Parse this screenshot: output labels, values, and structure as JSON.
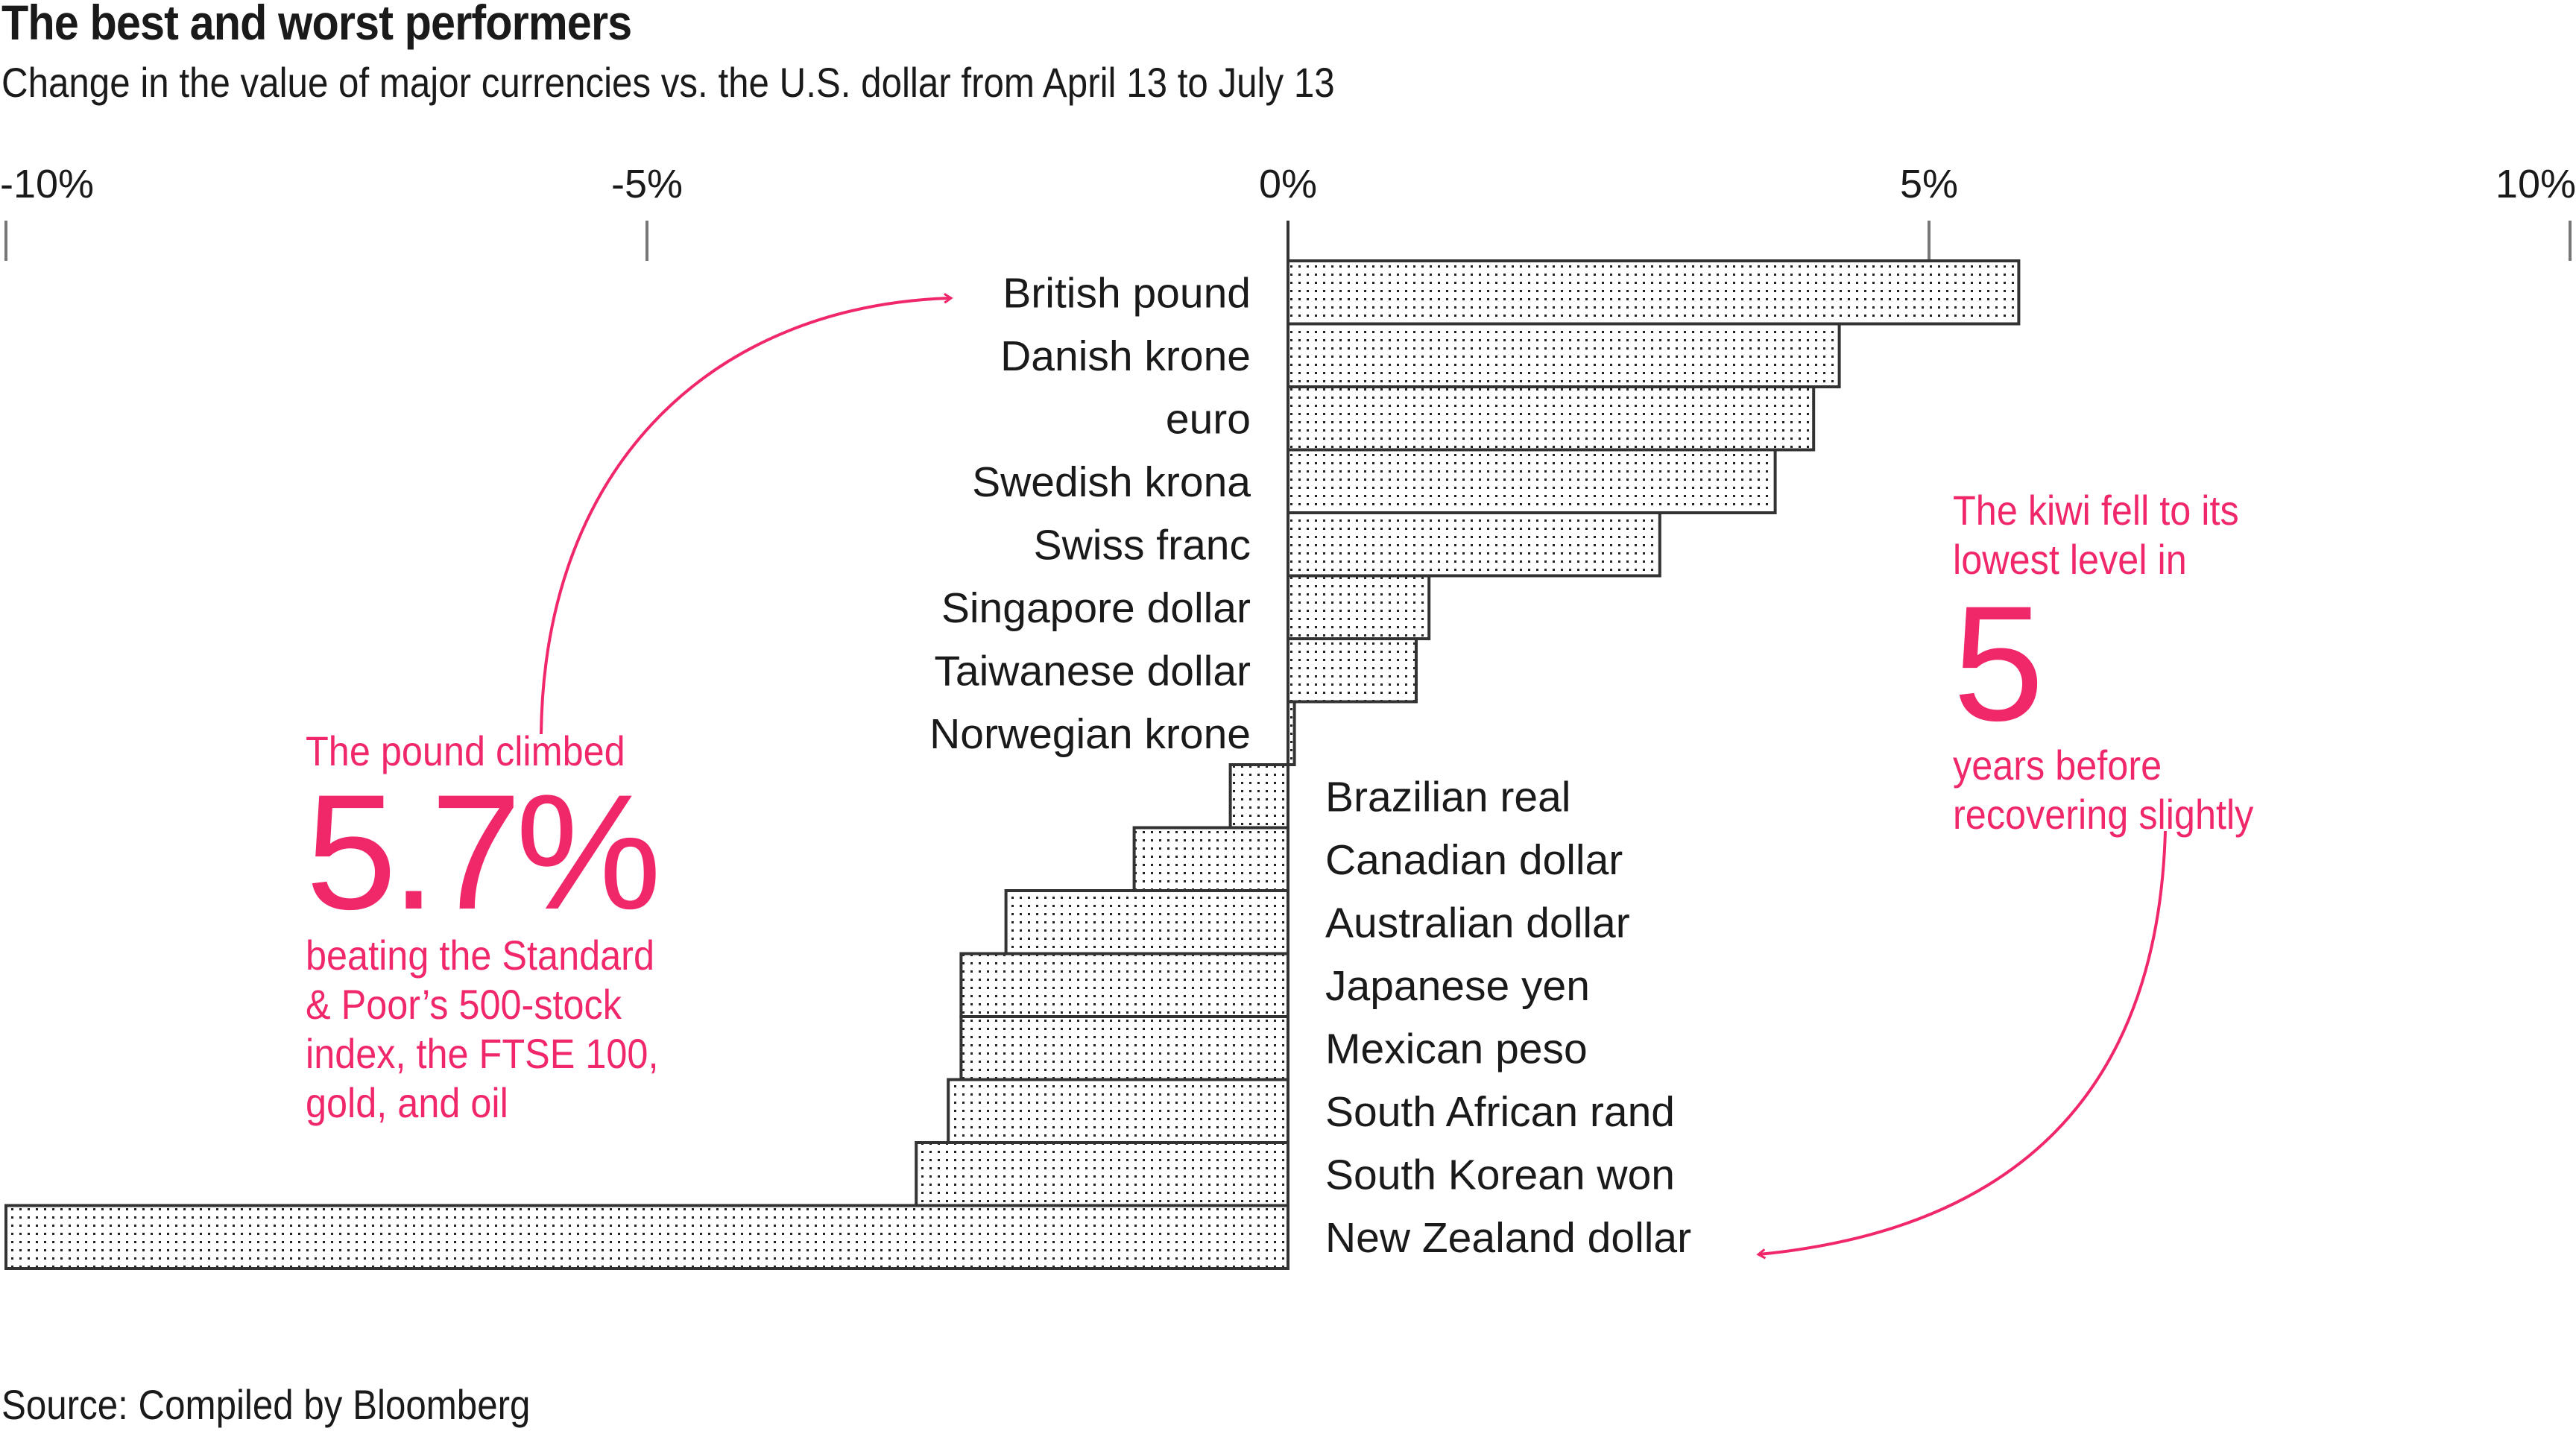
{
  "title": "The best and worst performers",
  "subtitle": "Change in the value of major currencies vs. the U.S. dollar from April 13 to July 13",
  "source": "Source: Compiled by Bloomberg",
  "colors": {
    "accent": "#f0286a",
    "bar_stroke": "#333333",
    "text": "#1a1a1a"
  },
  "annotations": {
    "pound": {
      "line1": "The pound climbed",
      "big": "5.7%",
      "lines": [
        "beating the Standard",
        "& Poor’s 500-stock",
        "index, the FTSE 100,",
        "gold, and oil"
      ]
    },
    "kiwi": {
      "line1": "The kiwi fell to its",
      "line2": "lowest level in",
      "big": "5",
      "lines": [
        "years before",
        "recovering slightly"
      ]
    }
  },
  "chart_data": {
    "type": "bar",
    "orientation": "horizontal",
    "title": "The best and worst performers",
    "subtitle": "Change in the value of major currencies vs. the U.S. dollar from April 13 to July 13",
    "xlabel": "",
    "ylabel": "",
    "xlim": [
      -10,
      10
    ],
    "x_ticks": [
      -10,
      -5,
      0,
      5,
      10
    ],
    "x_tick_labels": [
      "-10%",
      "-5%",
      "0%",
      "5%",
      "10%"
    ],
    "grid": false,
    "fill_pattern": "dotted",
    "categories": [
      "British pound",
      "Danish krone",
      "euro",
      "Swedish krona",
      "Swiss franc",
      "Singapore dollar",
      "Taiwanese dollar",
      "Norwegian krone",
      "Brazilian real",
      "Canadian dollar",
      "Australian dollar",
      "Japanese yen",
      "Mexican peso",
      "South African rand",
      "South Korean won",
      "New Zealand dollar"
    ],
    "values": [
      5.7,
      4.3,
      4.1,
      3.8,
      2.9,
      1.1,
      1.0,
      0.05,
      -0.45,
      -1.2,
      -2.2,
      -2.55,
      -2.55,
      -2.65,
      -2.9,
      -10.0
    ],
    "annotations": [
      "The pound climbed 5.7% beating the Standard & Poor’s 500-stock index, the FTSE 100, gold, and oil",
      "The kiwi fell to its lowest level in 5 years before recovering slightly"
    ]
  }
}
